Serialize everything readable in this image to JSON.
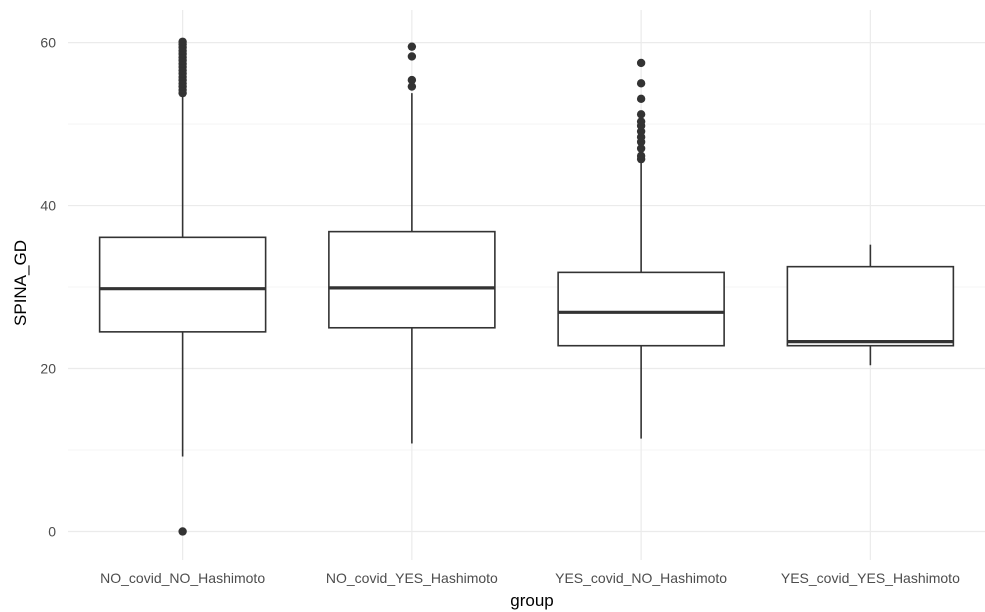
{
  "chart_data": {
    "type": "box",
    "xlabel": "group",
    "ylabel": "SPINA_GD",
    "ylim": [
      -3.5,
      64
    ],
    "y_ticks": [
      0,
      20,
      40,
      60
    ],
    "y_minor_ticks": [
      10,
      30,
      50
    ],
    "grid": true,
    "legend": "none",
    "categories": [
      "NO_covid_NO_Hashimoto",
      "NO_covid_YES_Hashimoto",
      "YES_covid_NO_Hashimoto",
      "YES_covid_YES_Hashimoto"
    ],
    "boxes": [
      {
        "category": "NO_covid_NO_Hashimoto",
        "whisker_low": 9.2,
        "q1": 24.5,
        "median": 29.8,
        "q3": 36.1,
        "whisker_high": 53.6,
        "outliers": [
          0,
          53.8,
          54.2,
          54.6,
          55.0,
          55.4,
          55.8,
          56.2,
          56.6,
          57.0,
          57.4,
          57.8,
          58.2,
          58.6,
          59.0,
          59.4,
          59.8,
          60.1
        ]
      },
      {
        "category": "NO_covid_YES_Hashimoto",
        "whisker_low": 10.8,
        "q1": 25.0,
        "median": 29.9,
        "q3": 36.8,
        "whisker_high": 53.8,
        "outliers": [
          54.6,
          55.4,
          58.3,
          59.5
        ]
      },
      {
        "category": "YES_covid_NO_Hashimoto",
        "whisker_low": 11.4,
        "q1": 22.8,
        "median": 26.9,
        "q3": 31.8,
        "whisker_high": 45.3,
        "outliers": [
          45.7,
          46.1,
          47.0,
          47.8,
          48.4,
          49.1,
          49.8,
          50.3,
          51.2,
          53.1,
          55.0,
          57.5
        ]
      },
      {
        "category": "YES_covid_YES_Hashimoto",
        "whisker_low": 20.4,
        "q1": 22.8,
        "median": 23.3,
        "q3": 32.5,
        "whisker_high": 35.2,
        "outliers": []
      }
    ]
  }
}
